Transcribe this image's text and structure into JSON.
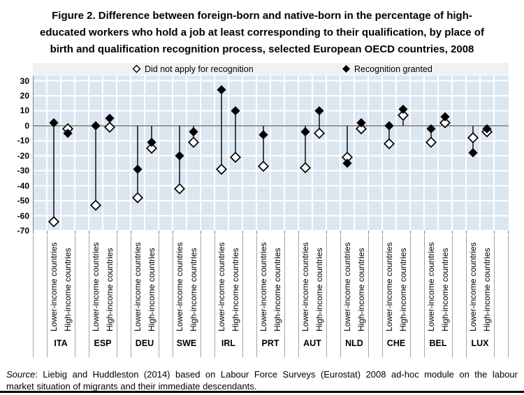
{
  "title_lines": [
    "Figure 2. Difference between foreign-born and native-born in the percentage of high-",
    "educated workers who hold a job at least corresponding to their qualification, by place of",
    "birth and qualification recognition process, selected European OECD countries, 2008"
  ],
  "source": {
    "label": "Source",
    "line1": ": Liebig and Huddleston (2014) based on Labour Force Surveys (Eurostat) 2008 ad-hoc module on the labour",
    "line2": "market situation of migrants and their immediate descendants."
  },
  "colors": {
    "plot_bg": "#dce6f1",
    "gridline": "#ffffff",
    "axis_line": "#808080",
    "separator": "#a6a6a6",
    "marker": "#000000",
    "legend_bg": "#f1f1f1",
    "text": "#000000"
  },
  "chart_data": {
    "type": "scatter",
    "title": "Difference between foreign-born and native-born in the percentage of high-educated workers who hold a job at least corresponding to their qualification, by place of birth and qualification recognition process, selected European OECD countries, 2008",
    "ylabel": "",
    "ylim": [
      -70,
      33
    ],
    "ytick_step": 10,
    "yticks": [
      30,
      20,
      10,
      0,
      -10,
      -20,
      -30,
      -40,
      -50,
      -60,
      -70
    ],
    "grid": true,
    "legend_position": "top",
    "series": [
      {
        "name": "Did not apply for recognition",
        "marker": "open-diamond",
        "key": "did_not_apply"
      },
      {
        "name": "Recognition granted",
        "marker": "filled-diamond",
        "key": "granted"
      }
    ],
    "group_sub_labels": [
      "Lower-income countries",
      "High-income countries"
    ],
    "groups": [
      {
        "code": "ITA",
        "points": [
          {
            "did_not_apply": -64,
            "granted": 2
          },
          {
            "did_not_apply": -2,
            "granted": -5
          }
        ]
      },
      {
        "code": "ESP",
        "points": [
          {
            "did_not_apply": -53,
            "granted": 0
          },
          {
            "did_not_apply": -1,
            "granted": 5
          }
        ]
      },
      {
        "code": "DEU",
        "points": [
          {
            "did_not_apply": -48,
            "granted": -29
          },
          {
            "did_not_apply": -15,
            "granted": -11
          }
        ]
      },
      {
        "code": "SWE",
        "points": [
          {
            "did_not_apply": -42,
            "granted": -20
          },
          {
            "did_not_apply": -11,
            "granted": -4
          }
        ]
      },
      {
        "code": "IRL",
        "points": [
          {
            "did_not_apply": -29,
            "granted": 24
          },
          {
            "did_not_apply": -21,
            "granted": 10
          }
        ]
      },
      {
        "code": "PRT",
        "points": [
          {
            "did_not_apply": -27,
            "granted": -6
          },
          {
            "did_not_apply": null,
            "granted": null
          }
        ]
      },
      {
        "code": "AUT",
        "points": [
          {
            "did_not_apply": -28,
            "granted": -4
          },
          {
            "did_not_apply": -5,
            "granted": 10
          }
        ]
      },
      {
        "code": "NLD",
        "points": [
          {
            "did_not_apply": -21,
            "granted": -25
          },
          {
            "did_not_apply": -2,
            "granted": 2
          }
        ]
      },
      {
        "code": "CHE",
        "points": [
          {
            "did_not_apply": -12,
            "granted": 0
          },
          {
            "did_not_apply": 7,
            "granted": 11
          }
        ]
      },
      {
        "code": "BEL",
        "points": [
          {
            "did_not_apply": -11,
            "granted": -2
          },
          {
            "did_not_apply": 2,
            "granted": 6
          }
        ]
      },
      {
        "code": "LUX",
        "points": [
          {
            "did_not_apply": -8,
            "granted": -18
          },
          {
            "did_not_apply": -4,
            "granted": -2
          }
        ]
      }
    ]
  }
}
